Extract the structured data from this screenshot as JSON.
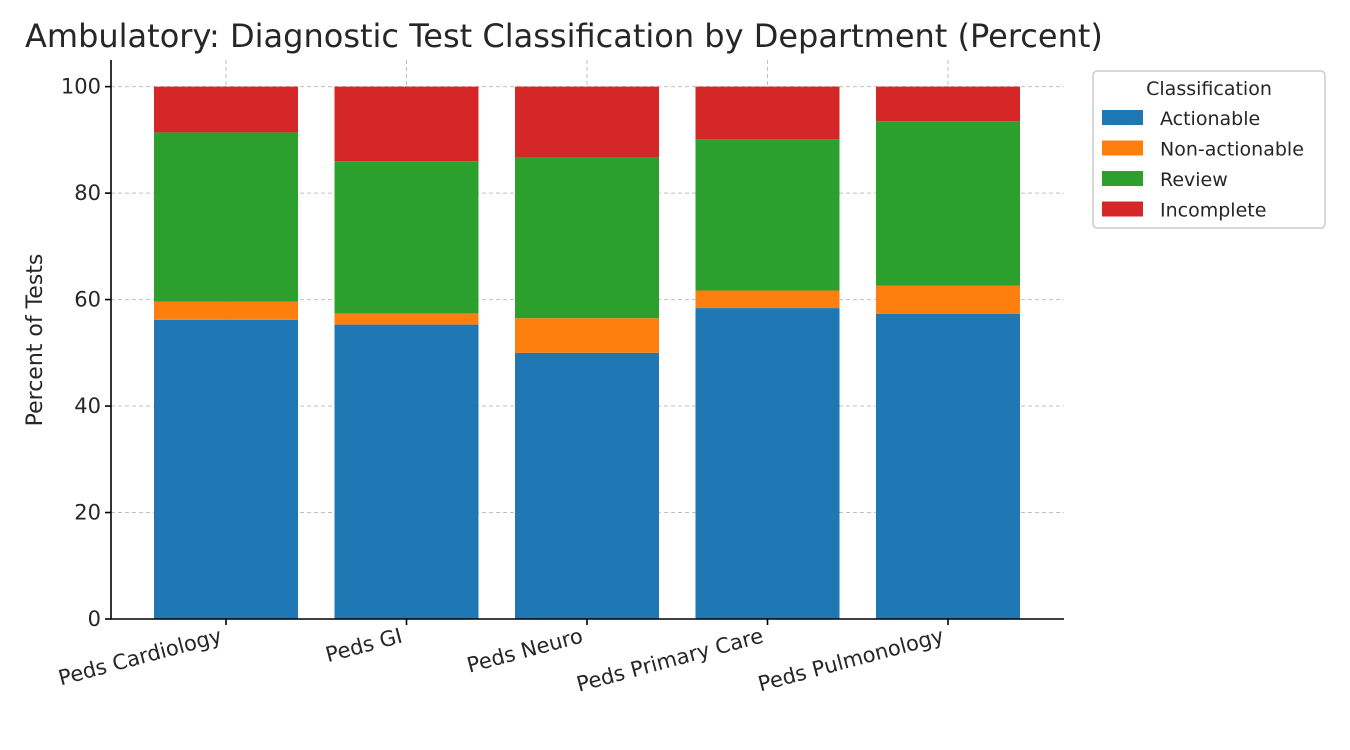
{
  "chart_data": {
    "type": "bar",
    "stacked": true,
    "title": "Ambulatory: Diagnostic Test Classification by Department (Percent)",
    "xlabel": "",
    "ylabel": "Percent of Tests",
    "ylim": [
      0,
      105
    ],
    "yticks": [
      0,
      20,
      40,
      60,
      80,
      100
    ],
    "grid": true,
    "legend": {
      "title": "Classification",
      "placement": "outside-top-right"
    },
    "categories": [
      "Peds Cardiology",
      "Peds GI",
      "Peds Neuro",
      "Peds Primary Care",
      "Peds Pulmonology"
    ],
    "series": [
      {
        "name": "Actionable",
        "color": "#1f77b4",
        "values": [
          56.2,
          55.3,
          50.0,
          58.4,
          57.3
        ]
      },
      {
        "name": "Non-actionable",
        "color": "#ff7f0e",
        "values": [
          3.4,
          2.1,
          6.5,
          3.3,
          5.3
        ]
      },
      {
        "name": "Review",
        "color": "#2ca02c",
        "values": [
          31.8,
          28.6,
          30.2,
          28.4,
          30.9
        ]
      },
      {
        "name": "Incomplete",
        "color": "#d62728",
        "values": [
          8.6,
          14.0,
          13.3,
          9.9,
          6.5
        ]
      }
    ]
  }
}
